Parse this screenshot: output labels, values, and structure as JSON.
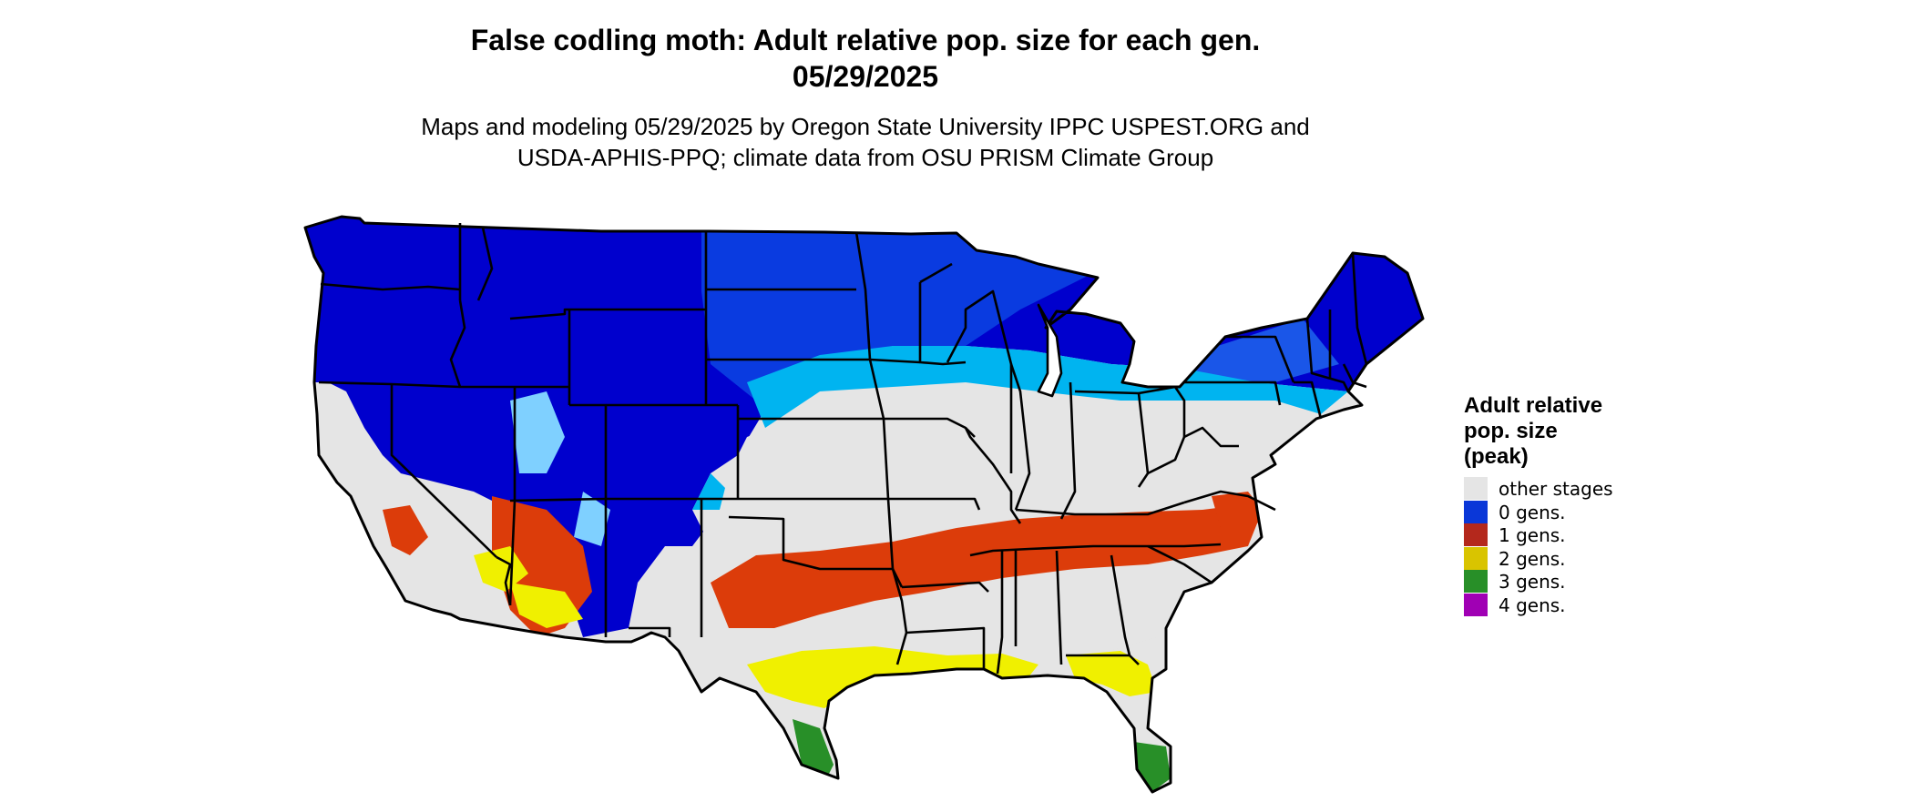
{
  "map": {
    "title_line1": "False codling moth: Adult relative pop. size for each gen.",
    "title_line2": "05/29/2025",
    "subtitle_line1": "Maps and modeling 05/29/2025 by Oregon State University IPPC USPEST.ORG and",
    "subtitle_line2": "USDA-APHIS-PPQ; climate data from OSU PRISM Climate Group",
    "region": "contiguous-united-states"
  },
  "legend": {
    "title_line1": "Adult relative",
    "title_line2": "pop. size",
    "title_line3": "(peak)",
    "items": [
      {
        "label": "other stages",
        "color": "#e5e5e5"
      },
      {
        "label": "0 gens.",
        "color": "#0a37d8"
      },
      {
        "label": "1 gens.",
        "color": "#b4281c"
      },
      {
        "label": "2 gens.",
        "color": "#d9c400"
      },
      {
        "label": "3 gens.",
        "color": "#288f28"
      },
      {
        "label": "4 gens.",
        "color": "#a000b4"
      }
    ]
  },
  "colors": {
    "zero_gen_dark": "#0000cd",
    "zero_gen_mid": "#0a3be0",
    "zero_gen_light": "#00b4f0",
    "one_gen": "#dc3c0a",
    "two_gen": "#f0f000",
    "three_gen": "#288f28",
    "other": "#e5e5e5",
    "boundary": "#000000"
  }
}
